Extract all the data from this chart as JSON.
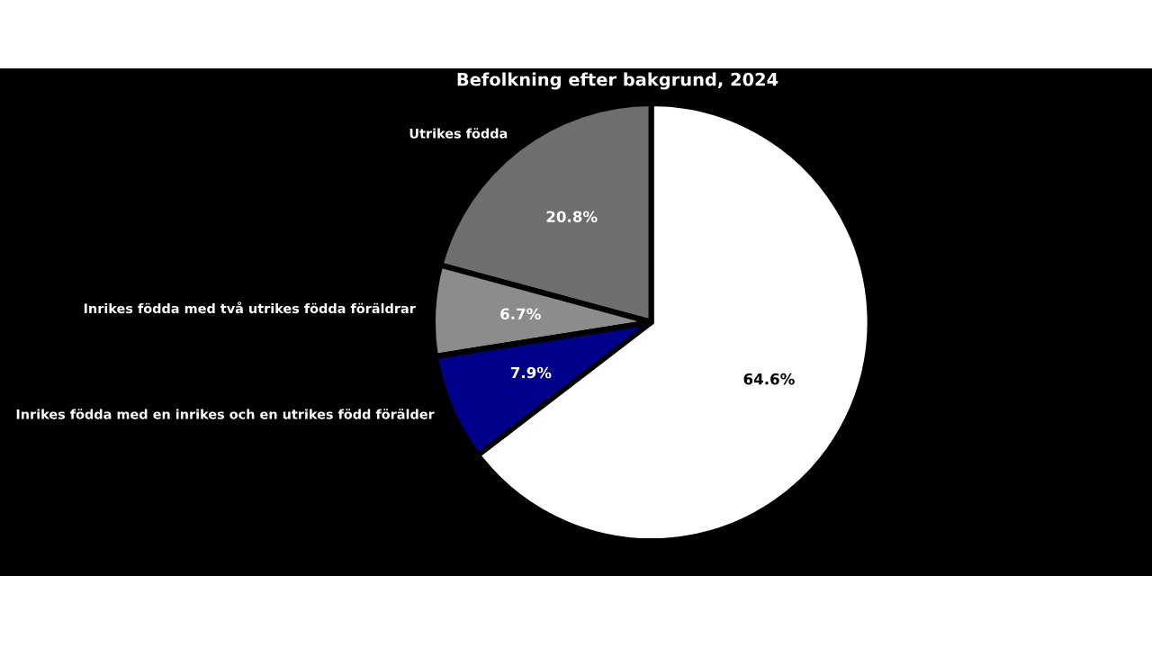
{
  "chart_data": {
    "type": "pie",
    "title": "Befolkning efter bakgrund, 2024",
    "categories": [
      "Utrikes födda",
      "Inrikes födda med två utrikes födda föräldrar",
      "Inrikes födda med en inrikes och en utrikes född förälder",
      null
    ],
    "values": [
      20.8,
      6.7,
      7.9,
      64.6
    ],
    "value_labels": [
      "20.8%",
      "6.7%",
      "7.9%",
      "64.6%"
    ],
    "colors": [
      "#6e6e6e",
      "#8c8c8c",
      "#00008b",
      "#ffffff"
    ],
    "legend": false
  }
}
